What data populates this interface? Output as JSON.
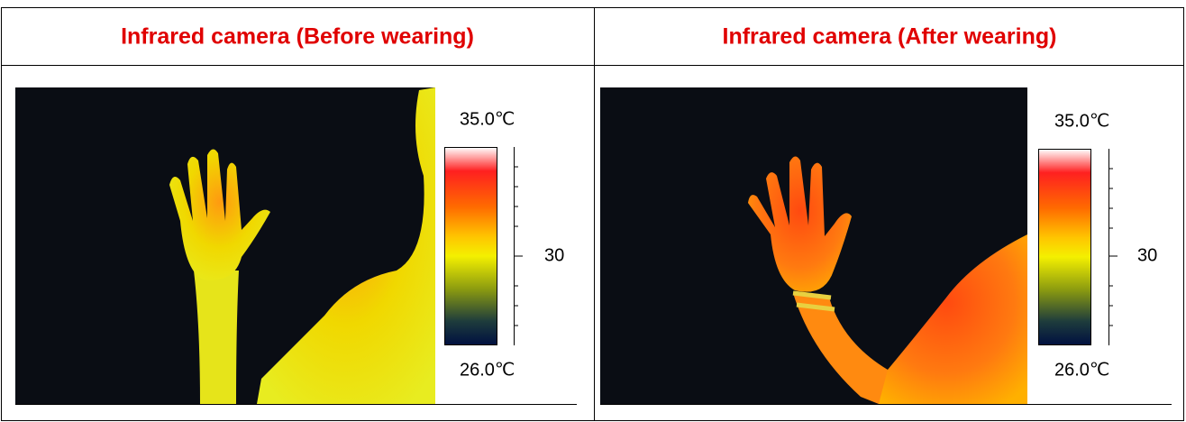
{
  "table": {
    "headers": [
      "Infrared camera (Before wearing)",
      "Infrared camera (After wearing)"
    ],
    "panels": [
      {
        "scale_max": "35.0℃",
        "scale_mid": "30",
        "scale_min": "26.0℃"
      },
      {
        "scale_max": "35.0℃",
        "scale_mid": "30",
        "scale_min": "26.0℃"
      }
    ]
  }
}
